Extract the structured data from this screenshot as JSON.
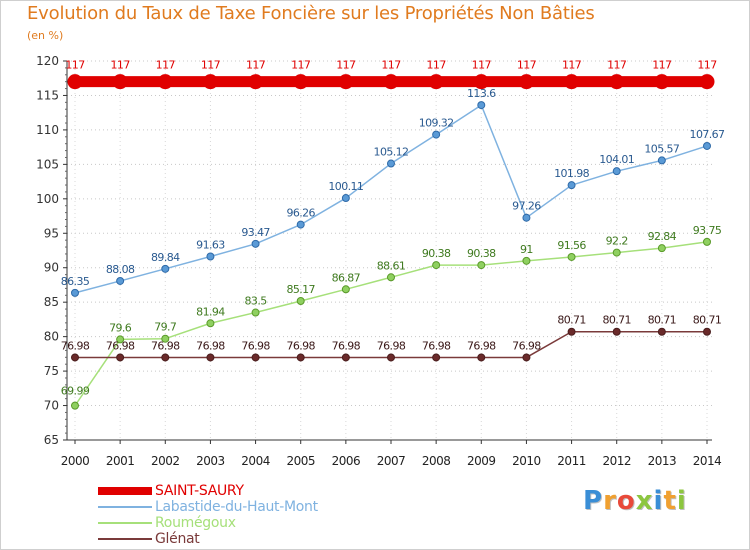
{
  "chart_data": {
    "type": "line",
    "title": "Evolution du Taux de Taxe Foncière sur les Propriétés Non Bâties",
    "ylabel": "(en %)",
    "xlabel": "",
    "ylim": [
      65,
      120
    ],
    "yticks": [
      65,
      70,
      75,
      80,
      85,
      90,
      95,
      100,
      105,
      110,
      115,
      120
    ],
    "categories": [
      "2000",
      "2001",
      "2002",
      "2003",
      "2004",
      "2005",
      "2006",
      "2007",
      "2008",
      "2009",
      "2010",
      "2011",
      "2012",
      "2013",
      "2014"
    ],
    "series": [
      {
        "name": "SAINT-SAURY",
        "color": "#e00000",
        "values": [
          117,
          117,
          117,
          117,
          117,
          117,
          117,
          117,
          117,
          117,
          117,
          117,
          117,
          117,
          117
        ],
        "labels": [
          "117",
          "117",
          "117",
          "117",
          "117",
          "117",
          "117",
          "117",
          "117",
          "117",
          "117",
          "117",
          "117",
          "117",
          "117"
        ]
      },
      {
        "name": "Labastide-du-Haut-Mont",
        "color": "#7fb2e0",
        "values": [
          86.35,
          88.08,
          89.84,
          91.63,
          93.47,
          96.26,
          100.11,
          105.12,
          109.32,
          113.6,
          97.26,
          101.98,
          104.01,
          105.57,
          107.67
        ],
        "labels": [
          "86.35",
          "88.08",
          "89.84",
          "91.63",
          "93.47",
          "96.26",
          "100.11",
          "105.12",
          "109.32",
          "113.6",
          "97.26",
          "101.98",
          "104.01",
          "105.57",
          "107.67"
        ]
      },
      {
        "name": "Roumégoux",
        "color": "#a6e07a",
        "values": [
          69.99,
          79.6,
          79.7,
          81.94,
          83.5,
          85.17,
          86.87,
          88.61,
          90.38,
          90.38,
          91,
          91.56,
          92.2,
          92.84,
          93.75
        ],
        "labels": [
          "69.99",
          "79.6",
          "79.7",
          "81.94",
          "83.5",
          "85.17",
          "86.87",
          "88.61",
          "90.38",
          "90.38",
          "91",
          "91.56",
          "92.2",
          "92.84",
          "93.75"
        ]
      },
      {
        "name": "Glénat",
        "color": "#7a3a3a",
        "values": [
          76.98,
          76.98,
          76.98,
          76.98,
          76.98,
          76.98,
          76.98,
          76.98,
          76.98,
          76.98,
          76.98,
          80.71,
          80.71,
          80.71,
          80.71
        ],
        "labels": [
          "76.98",
          "76.98",
          "76.98",
          "76.98",
          "76.98",
          "76.98",
          "76.98",
          "76.98",
          "76.98",
          "76.98",
          "76.98",
          "80.71",
          "80.71",
          "80.71",
          "80.71"
        ]
      }
    ],
    "legend": "bottom-left"
  },
  "logo": {
    "letters": [
      "P",
      "r",
      "o",
      "x",
      "i",
      "t",
      "i"
    ],
    "colors": [
      "#3a8ed6",
      "#f0a030",
      "#e84a3a",
      "#8cc63f",
      "#3a8ed6",
      "#f0a030",
      "#8cc63f"
    ]
  }
}
